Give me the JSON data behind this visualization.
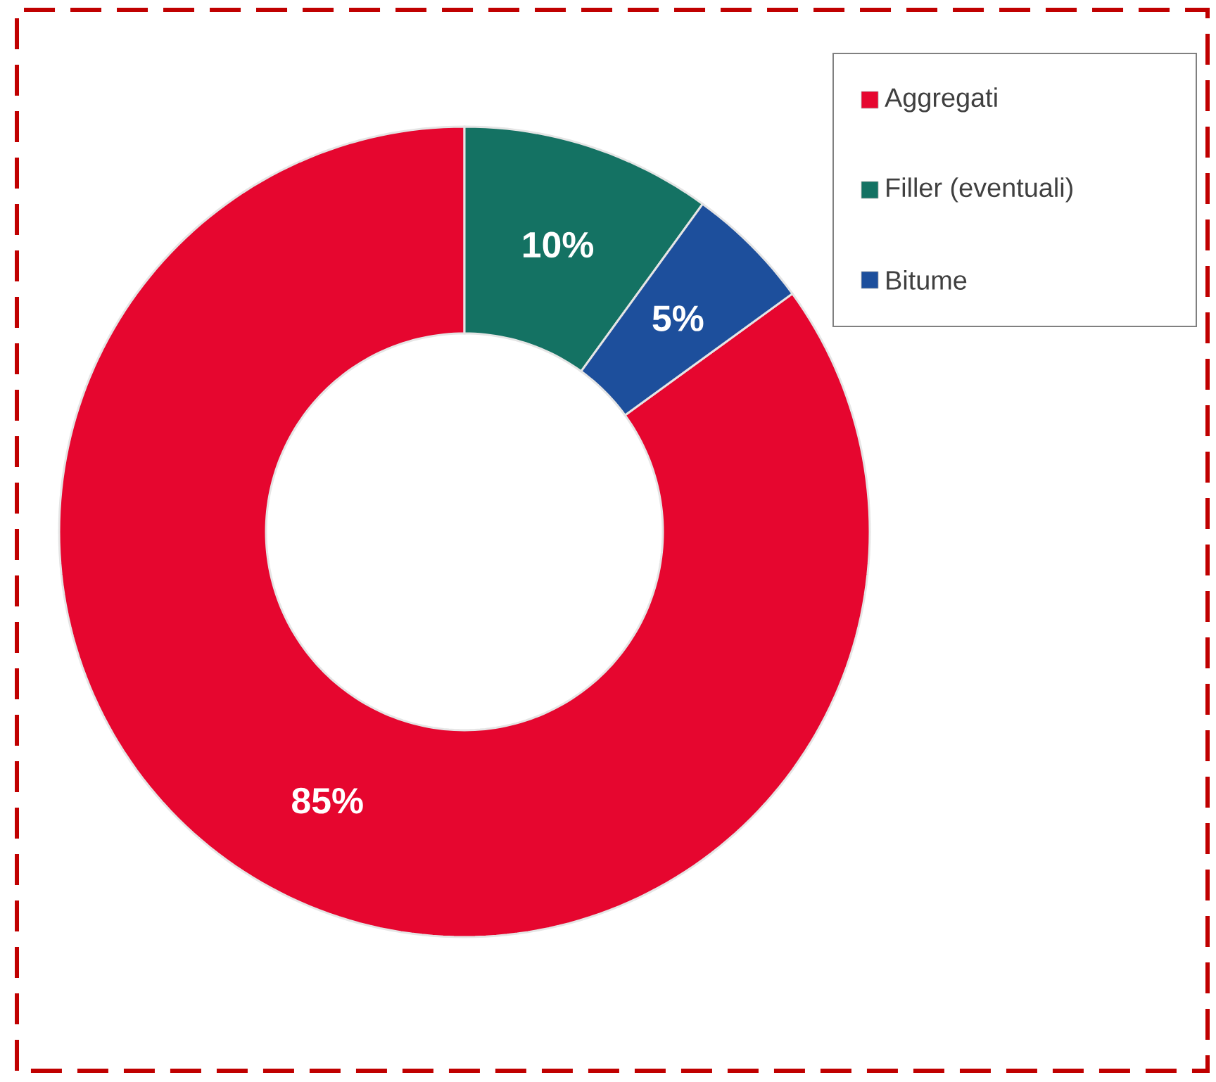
{
  "chart_data": {
    "type": "donut",
    "categories": [
      "Aggregati",
      "Filler (eventuali)",
      "Bitume"
    ],
    "values": [
      85,
      10,
      5
    ],
    "colors": [
      "#e6062f",
      "#147263",
      "#1d4f9c"
    ],
    "value_labels": [
      "85%",
      "10%",
      "5%"
    ],
    "legend": "top right"
  }
}
